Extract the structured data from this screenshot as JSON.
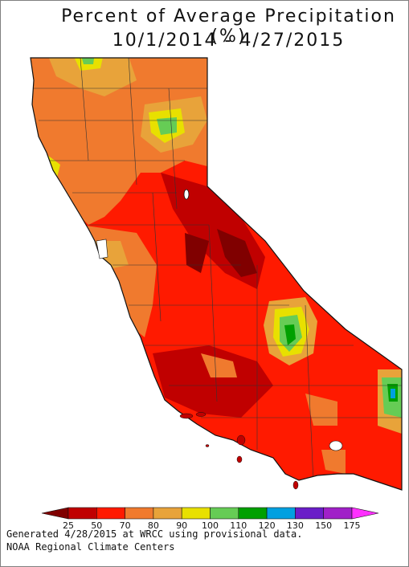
{
  "title": "Percent of Average Precipitation (%)",
  "date_range": "10/1/2014 - 4/27/2015",
  "legend": {
    "colors": [
      "#800000",
      "#c00000",
      "#ff1a00",
      "#f07a2e",
      "#e8a33a",
      "#e8e000",
      "#66cc55",
      "#00a000",
      "#00a0e0",
      "#6a1ec8",
      "#a020c8",
      "#ff30ff"
    ],
    "ticks": [
      "25",
      "50",
      "70",
      "80",
      "90",
      "100",
      "110",
      "120",
      "130",
      "150",
      "175"
    ]
  },
  "footer": {
    "generated": "Generated 4/28/2015 at WRCC using provisional data.",
    "source": "NOAA Regional Climate Centers"
  },
  "map": {
    "region": "California",
    "base_color": "#ff1a00",
    "ocean_color": "#ffffff"
  }
}
